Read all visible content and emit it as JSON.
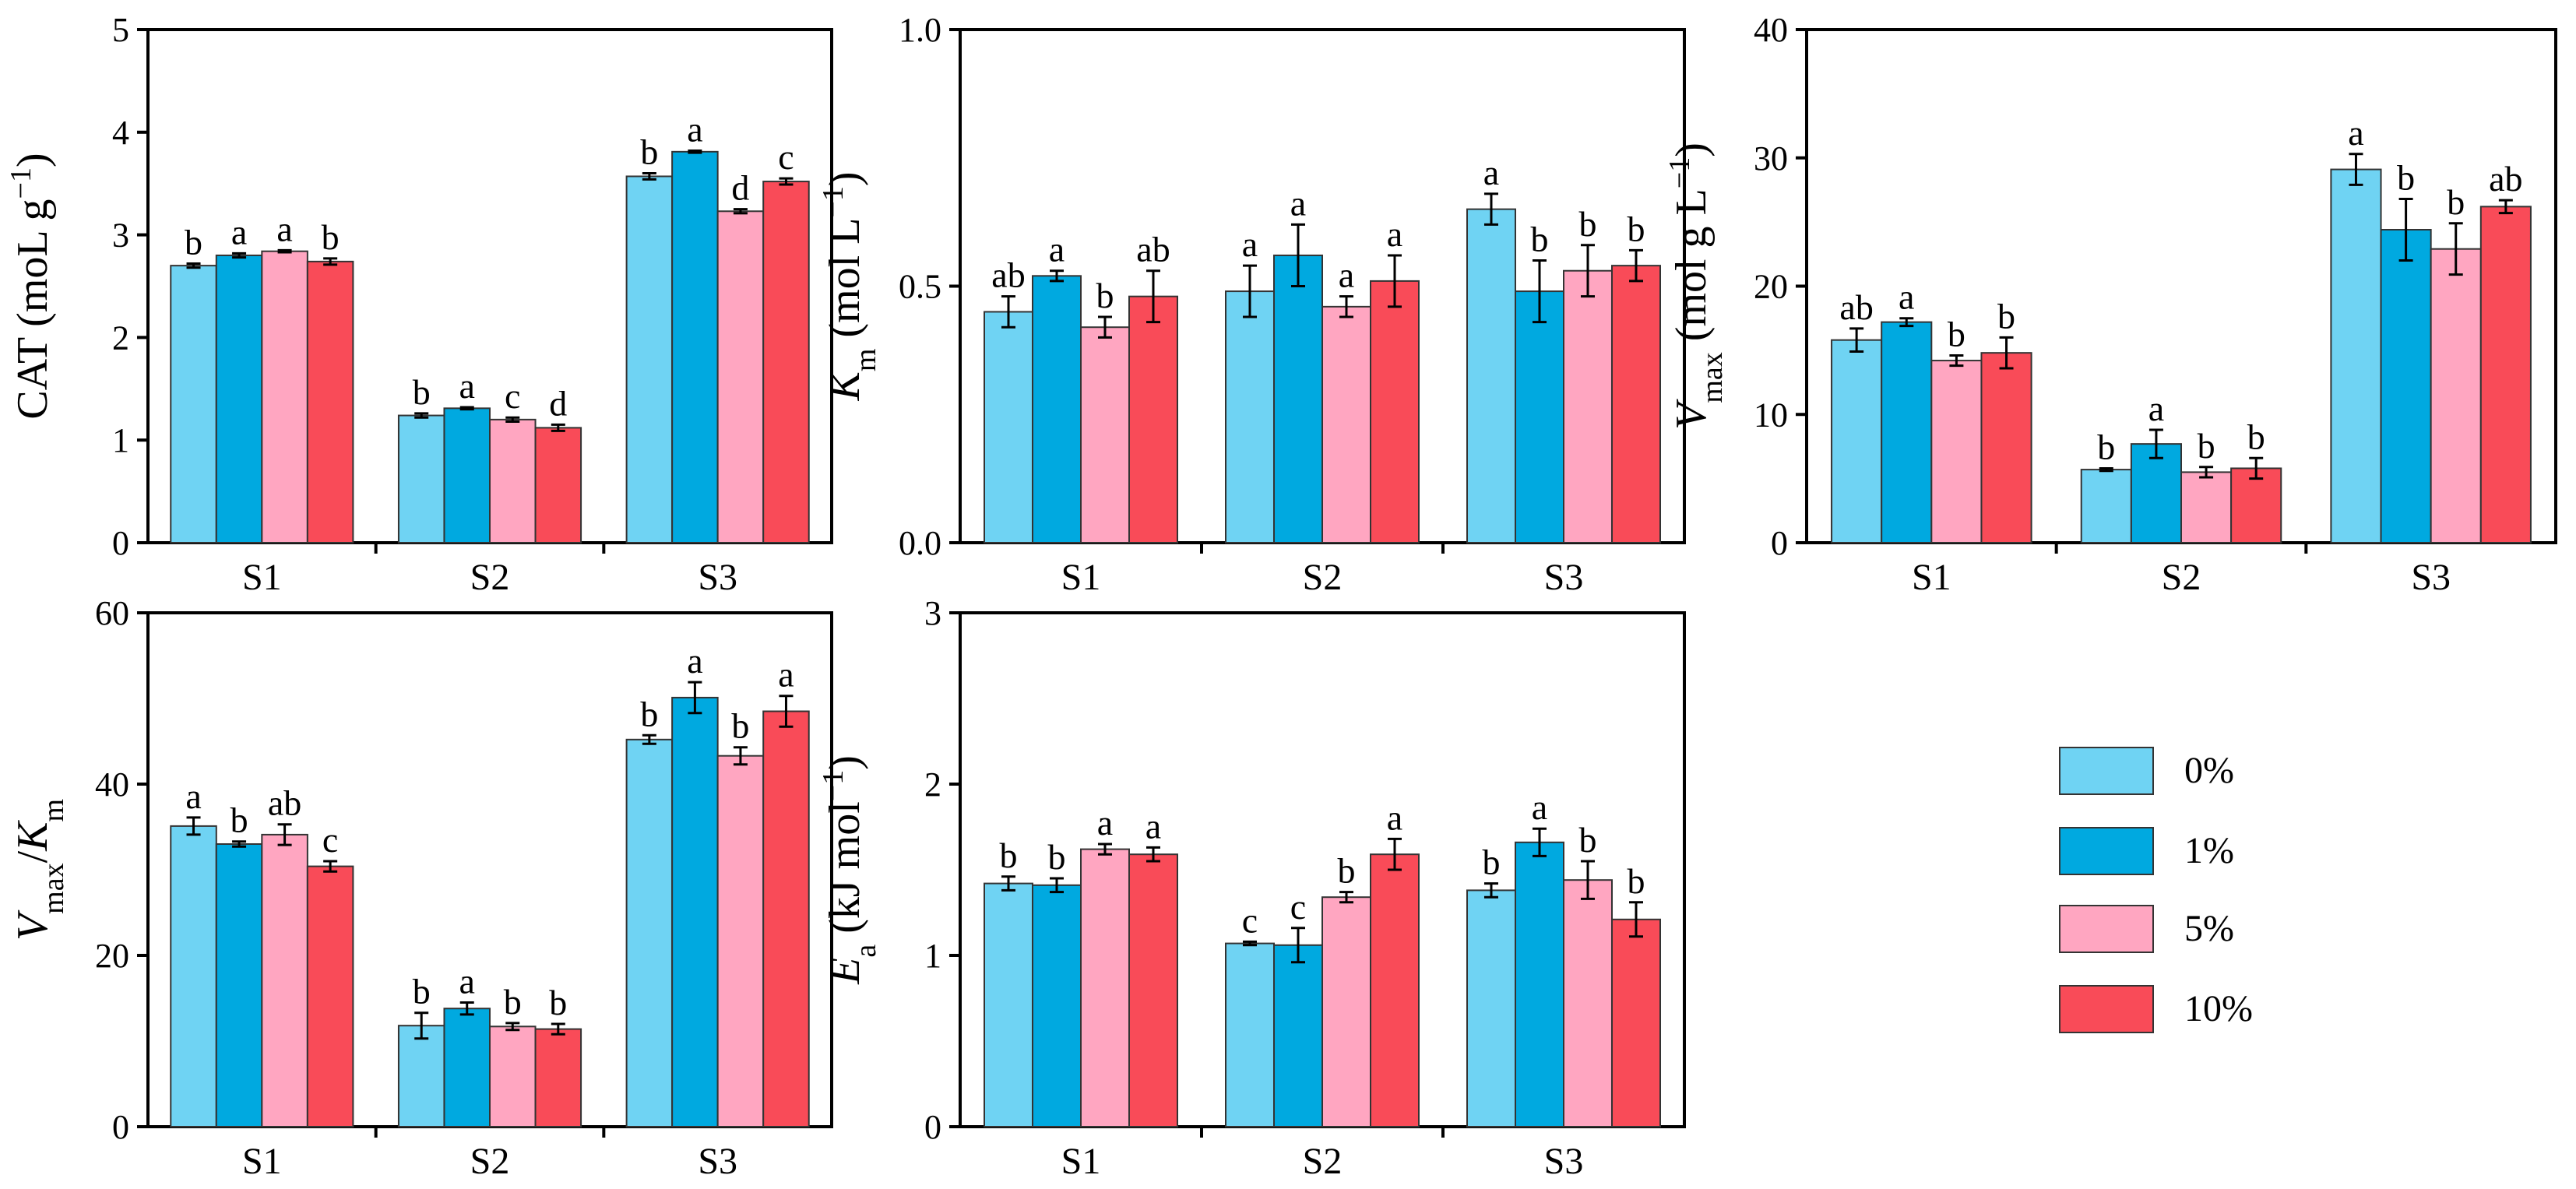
{
  "legend": {
    "items": [
      {
        "label": "0%",
        "color": "#6FD3F3"
      },
      {
        "label": "1%",
        "color": "#00A9E0"
      },
      {
        "label": "5%",
        "color": "#FFA6C1"
      },
      {
        "label": "10%",
        "color": "#F94B58"
      }
    ]
  },
  "chart_data": [
    {
      "type": "bar",
      "id": "cat",
      "ylabel": {
        "main": "CAT (moL g",
        "sup": "−1",
        "tail": ")"
      },
      "categories": [
        "S1",
        "S2",
        "S3"
      ],
      "ylim": [
        0,
        5
      ],
      "yticks": [
        "0",
        "1",
        "2",
        "3",
        "4",
        "5"
      ],
      "series": [
        {
          "name": "0%",
          "values": [
            2.7,
            1.24,
            3.57
          ],
          "errors": [
            0.02,
            0.02,
            0.03
          ],
          "letters": [
            "b",
            "b",
            "b"
          ]
        },
        {
          "name": "1%",
          "values": [
            2.8,
            1.31,
            3.81
          ],
          "errors": [
            0.02,
            0.01,
            0.01
          ],
          "letters": [
            "a",
            "a",
            "a"
          ]
        },
        {
          "name": "5%",
          "values": [
            2.84,
            1.2,
            3.23
          ],
          "errors": [
            0.01,
            0.02,
            0.02
          ],
          "letters": [
            "a",
            "c",
            "d"
          ]
        },
        {
          "name": "10%",
          "values": [
            2.74,
            1.12,
            3.52
          ],
          "errors": [
            0.03,
            0.03,
            0.03
          ],
          "letters": [
            "b",
            "d",
            "c"
          ]
        }
      ]
    },
    {
      "type": "bar",
      "id": "km",
      "ylabel": {
        "main": "K",
        "sub": "m",
        "tail": " (mol L",
        "sup": "−1",
        "tail2": ")"
      },
      "categories": [
        "S1",
        "S2",
        "S3"
      ],
      "ylim": [
        0,
        1
      ],
      "yticks": [
        "0.0",
        "0.5",
        "1.0"
      ],
      "series": [
        {
          "name": "0%",
          "values": [
            0.45,
            0.49,
            0.65
          ],
          "errors": [
            0.03,
            0.05,
            0.03
          ],
          "letters": [
            "ab",
            "a",
            "a"
          ]
        },
        {
          "name": "1%",
          "values": [
            0.52,
            0.56,
            0.49
          ],
          "errors": [
            0.01,
            0.06,
            0.06
          ],
          "letters": [
            "a",
            "a",
            "b"
          ]
        },
        {
          "name": "5%",
          "values": [
            0.42,
            0.46,
            0.53
          ],
          "errors": [
            0.02,
            0.02,
            0.05
          ],
          "letters": [
            "b",
            "a",
            "b"
          ]
        },
        {
          "name": "10%",
          "values": [
            0.48,
            0.51,
            0.54
          ],
          "errors": [
            0.05,
            0.05,
            0.03
          ],
          "letters": [
            "ab",
            "a",
            "b"
          ]
        }
      ]
    },
    {
      "type": "bar",
      "id": "vmax",
      "ylabel": {
        "main": "V",
        "sub": "max",
        "tail": " (mol g L",
        "sup": "−1",
        "tail2": ")"
      },
      "categories": [
        "S1",
        "S2",
        "S3"
      ],
      "ylim": [
        0,
        40
      ],
      "yticks": [
        "0",
        "10",
        "20",
        "30",
        "40"
      ],
      "series": [
        {
          "name": "0%",
          "values": [
            15.8,
            5.7,
            29.1
          ],
          "errors": [
            0.9,
            0.1,
            1.2
          ],
          "letters": [
            "ab",
            "b",
            "a"
          ]
        },
        {
          "name": "1%",
          "values": [
            17.2,
            7.7,
            24.4
          ],
          "errors": [
            0.3,
            1.1,
            2.4
          ],
          "letters": [
            "a",
            "a",
            "b"
          ]
        },
        {
          "name": "5%",
          "values": [
            14.2,
            5.5,
            22.9
          ],
          "errors": [
            0.4,
            0.4,
            2.0
          ],
          "letters": [
            "b",
            "b",
            "b"
          ]
        },
        {
          "name": "10%",
          "values": [
            14.8,
            5.8,
            26.2
          ],
          "errors": [
            1.2,
            0.8,
            0.5
          ],
          "letters": [
            "b",
            "b",
            "ab"
          ]
        }
      ]
    },
    {
      "type": "bar",
      "id": "vmaxkm",
      "ylabel": {
        "main": "V",
        "sub": "max",
        "tail": "/K",
        "sub2": "m"
      },
      "categories": [
        "S1",
        "S2",
        "S3"
      ],
      "ylim": [
        0,
        60
      ],
      "yticks": [
        "0",
        "20",
        "40",
        "60"
      ],
      "series": [
        {
          "name": "0%",
          "values": [
            35.1,
            11.8,
            45.2
          ],
          "errors": [
            1.0,
            1.5,
            0.5
          ],
          "letters": [
            "a",
            "b",
            "b"
          ]
        },
        {
          "name": "1%",
          "values": [
            33.0,
            13.8,
            50.1
          ],
          "errors": [
            0.3,
            0.7,
            1.8
          ],
          "letters": [
            "b",
            "a",
            "a"
          ]
        },
        {
          "name": "5%",
          "values": [
            34.1,
            11.7,
            43.3
          ],
          "errors": [
            1.2,
            0.4,
            1.0
          ],
          "letters": [
            "ab",
            "b",
            "b"
          ]
        },
        {
          "name": "10%",
          "values": [
            30.4,
            11.4,
            48.5
          ],
          "errors": [
            0.6,
            0.6,
            1.8
          ],
          "letters": [
            "c",
            "b",
            "a"
          ]
        }
      ]
    },
    {
      "type": "bar",
      "id": "ea",
      "ylabel": {
        "main": "E",
        "sub": "a",
        "tail": " (kJ mol",
        "sup": "−1",
        "tail2": ")"
      },
      "categories": [
        "S1",
        "S2",
        "S3"
      ],
      "ylim": [
        0,
        3
      ],
      "yticks": [
        "0",
        "1",
        "2",
        "3"
      ],
      "series": [
        {
          "name": "0%",
          "values": [
            1.42,
            1.07,
            1.38
          ],
          "errors": [
            0.04,
            0.01,
            0.04
          ],
          "letters": [
            "b",
            "c",
            "b"
          ]
        },
        {
          "name": "1%",
          "values": [
            1.41,
            1.06,
            1.66
          ],
          "errors": [
            0.04,
            0.1,
            0.08
          ],
          "letters": [
            "b",
            "c",
            "a"
          ]
        },
        {
          "name": "5%",
          "values": [
            1.62,
            1.34,
            1.44
          ],
          "errors": [
            0.03,
            0.03,
            0.11
          ],
          "letters": [
            "a",
            "b",
            "b"
          ]
        },
        {
          "name": "10%",
          "values": [
            1.59,
            1.59,
            1.21
          ],
          "errors": [
            0.04,
            0.09,
            0.1
          ],
          "letters": [
            "a",
            "a",
            "b"
          ]
        }
      ]
    }
  ]
}
